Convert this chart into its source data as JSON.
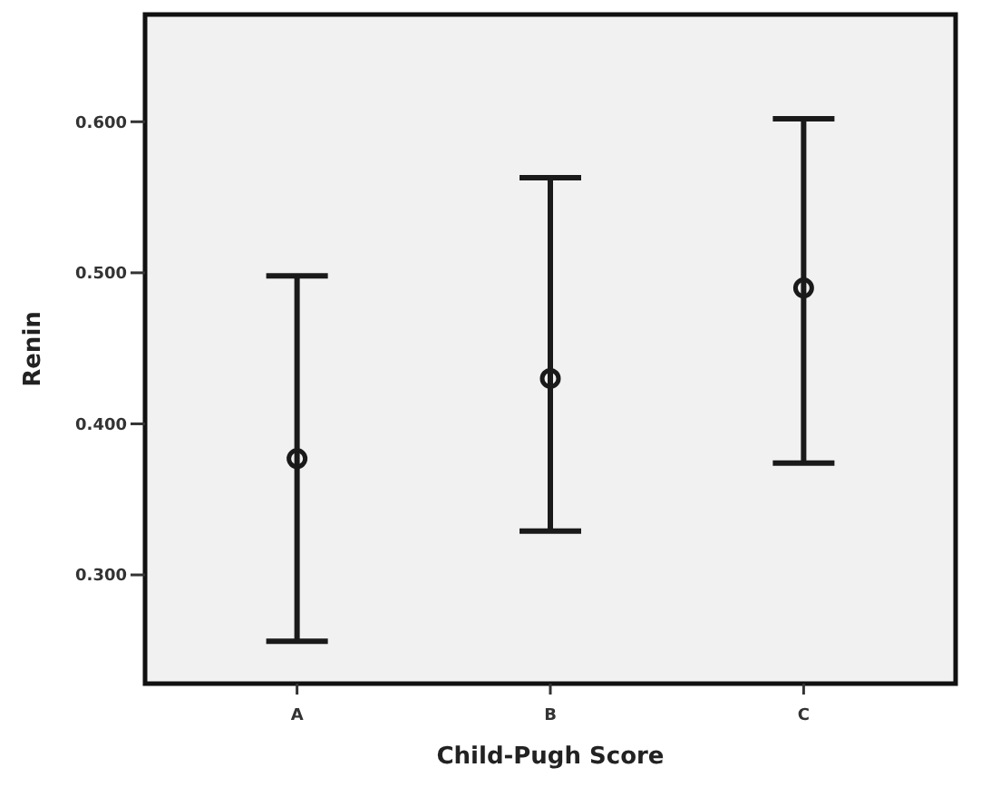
{
  "chart_data": {
    "type": "scatter",
    "xlabel": "Child-Pugh Score",
    "ylabel": "Renin",
    "categories": [
      "A",
      "B",
      "C"
    ],
    "values": [
      0.377,
      0.43,
      0.49
    ],
    "errors": [
      [
        0.256,
        0.498
      ],
      [
        0.329,
        0.563
      ],
      [
        0.374,
        0.602
      ]
    ],
    "color": "#1a1a1a",
    "marker": "circle",
    "ylim": [
      0.228,
      0.671
    ],
    "yticks": [
      {
        "value": 0.3,
        "label": "0.300"
      },
      {
        "value": 0.4,
        "label": "0.400"
      },
      {
        "value": 0.5,
        "label": "0.500"
      },
      {
        "value": 0.6,
        "label": "0.600"
      }
    ],
    "grid": false
  }
}
